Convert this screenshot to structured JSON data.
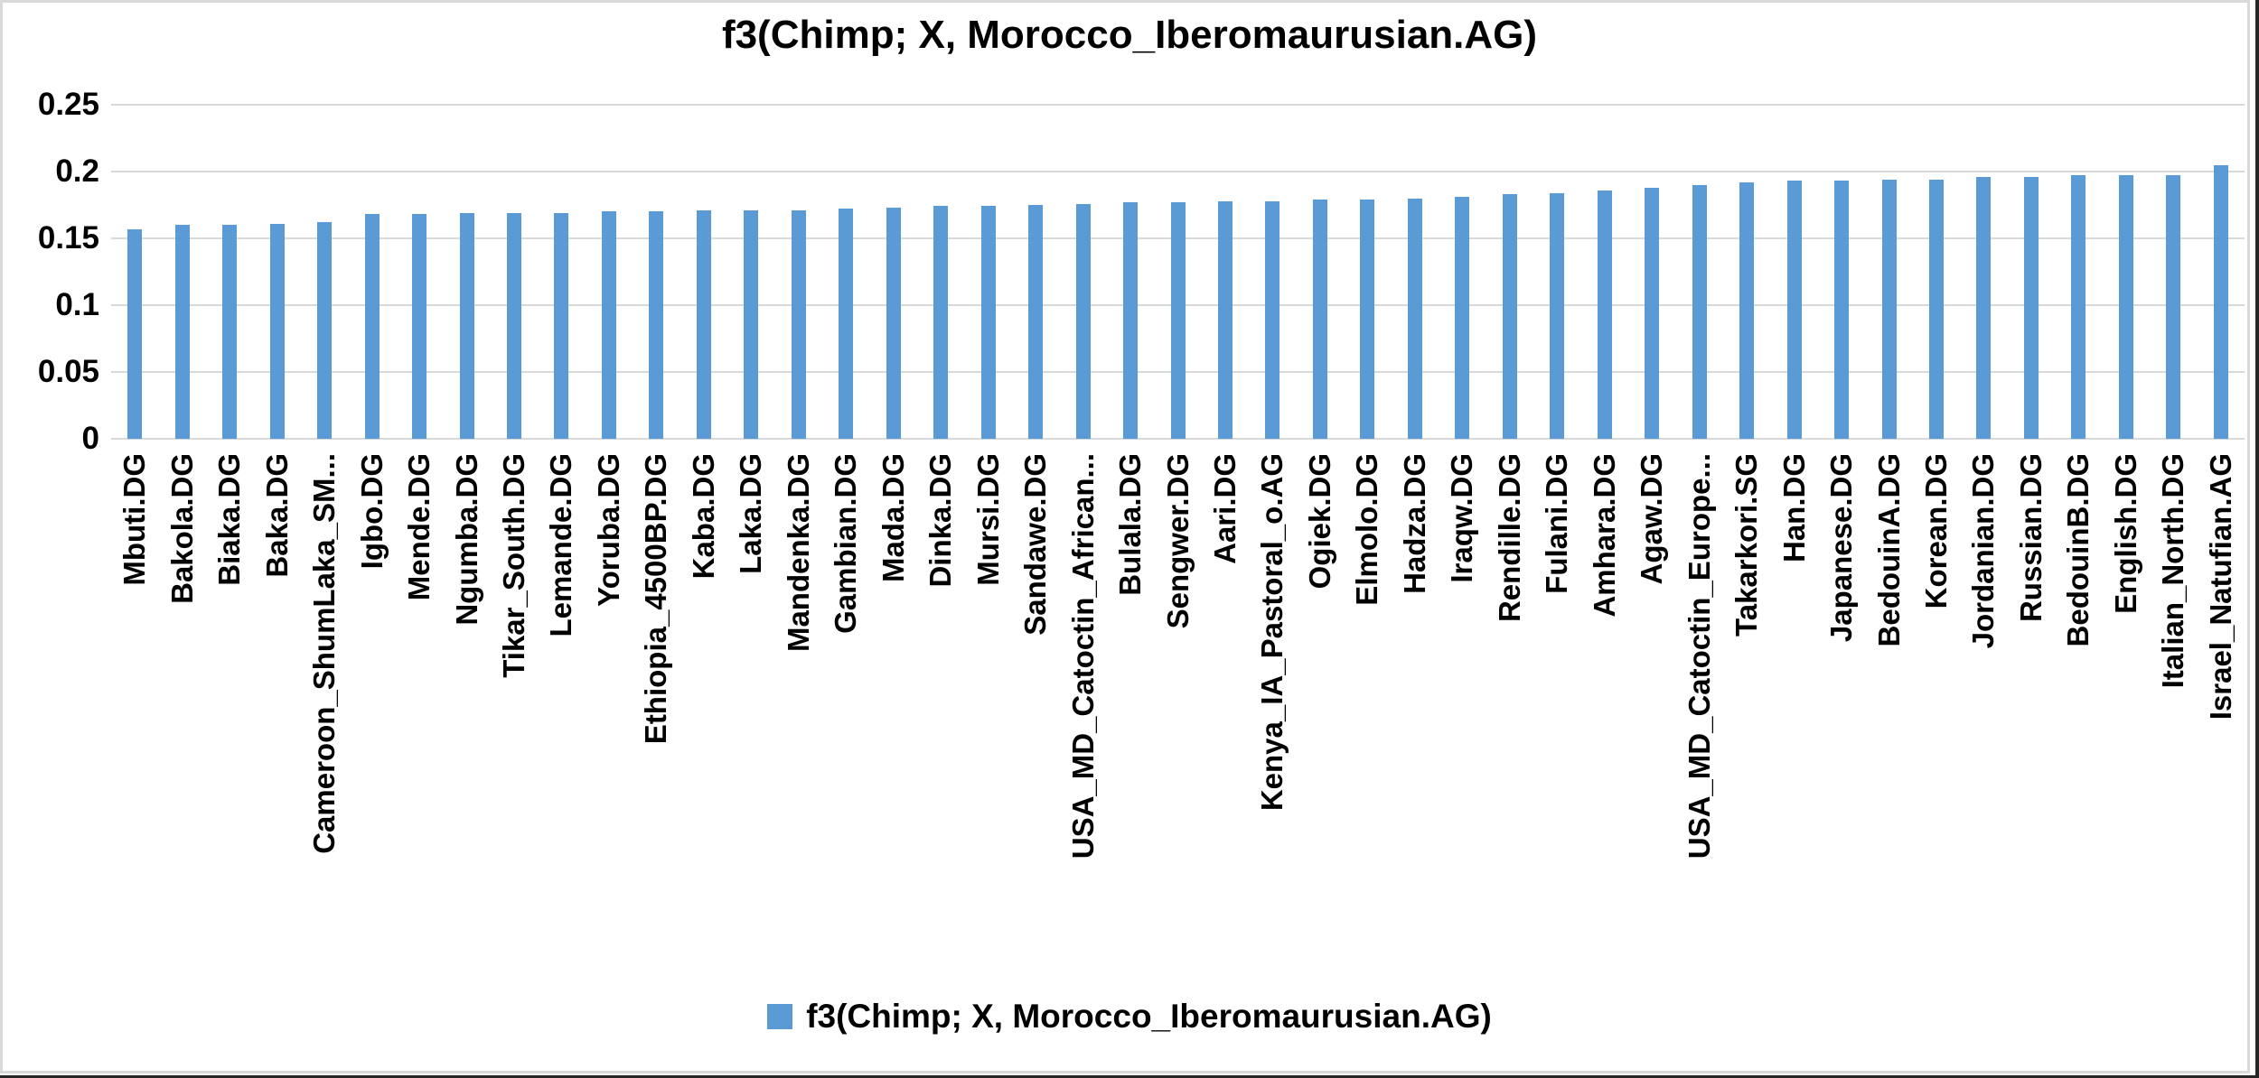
{
  "chart_data": {
    "type": "bar",
    "title": "f3(Chimp; X, Morocco_Iberomaurusian.AG)",
    "legend_label": "f3(Chimp; X, Morocco_Iberomaurusian.AG)",
    "legend_position": "bottom",
    "grid": true,
    "ylim": [
      0,
      0.25
    ],
    "ytick_labels": [
      "0",
      "0.05",
      "0.1",
      "0.15",
      "0.2",
      "0.25"
    ],
    "ytick_values": [
      0,
      0.05,
      0.1,
      0.15,
      0.2,
      0.25
    ],
    "bar_color": "#5B9BD5",
    "gridline_color": "#D9D9D9",
    "text_color": "#000000",
    "categories": [
      "Mbuti.DG",
      "Bakola.DG",
      "Biaka.DG",
      "Baka.DG",
      "Cameroon_ShumLaka_SM...",
      "Igbo.DG",
      "Mende.DG",
      "Ngumba.DG",
      "Tikar_South.DG",
      "Lemande.DG",
      "Yoruba.DG",
      "Ethiopia_4500BP.DG",
      "Kaba.DG",
      "Laka.DG",
      "Mandenka.DG",
      "Gambian.DG",
      "Mada.DG",
      "Dinka.DG",
      "Mursi.DG",
      "Sandawe.DG",
      "USA_MD_Catoctin_African...",
      "Bulala.DG",
      "Sengwer.DG",
      "Aari.DG",
      "Kenya_IA_Pastoral_o.AG",
      "Ogiek.DG",
      "Elmolo.DG",
      "Hadza.DG",
      "Iraqw.DG",
      "Rendille.DG",
      "Fulani.DG",
      "Amhara.DG",
      "Agaw.DG",
      "USA_MD_Catoctin_Europe...",
      "Takarkori.SG",
      "Han.DG",
      "Japanese.DG",
      "BedouinA.DG",
      "Korean.DG",
      "Jordanian.DG",
      "Russian.DG",
      "BedouinB.DG",
      "English.DG",
      "Italian_North.DG",
      "Israel_Natufian.AG"
    ],
    "values": [
      0.157,
      0.16,
      0.16,
      0.161,
      0.162,
      0.168,
      0.168,
      0.169,
      0.169,
      0.169,
      0.17,
      0.17,
      0.171,
      0.171,
      0.171,
      0.172,
      0.173,
      0.174,
      0.174,
      0.175,
      0.176,
      0.177,
      0.177,
      0.178,
      0.178,
      0.179,
      0.179,
      0.18,
      0.181,
      0.183,
      0.184,
      0.186,
      0.188,
      0.19,
      0.192,
      0.193,
      0.193,
      0.194,
      0.194,
      0.196,
      0.196,
      0.197,
      0.197,
      0.197,
      0.205
    ]
  }
}
